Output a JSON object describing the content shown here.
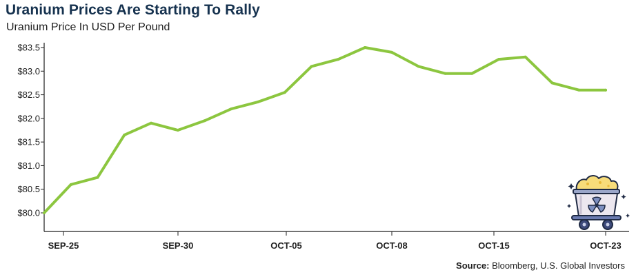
{
  "header": {
    "title": "Uranium Prices Are Starting To Rally",
    "subtitle": "Uranium Price In USD Per Pound"
  },
  "footer": {
    "source_label": "Source:",
    "source_text": "Bloomberg, U.S. Global Investors"
  },
  "colors": {
    "line": "#8cc63f",
    "axis": "#1f1f1f",
    "title": "#16324f"
  },
  "icon": "uranium-mine-cart-icon",
  "chart_data": {
    "type": "line",
    "title": "Uranium Prices Are Starting To Rally",
    "subtitle": "Uranium Price In USD Per Pound",
    "xlabel": "",
    "ylabel": "",
    "ylim": [
      80.0,
      83.5
    ],
    "yticks": [
      {
        "value": 80.0,
        "label": "$80.0"
      },
      {
        "value": 80.5,
        "label": "$80.5"
      },
      {
        "value": 81.0,
        "label": "$81.0"
      },
      {
        "value": 81.5,
        "label": "$81.5"
      },
      {
        "value": 82.0,
        "label": "$82.0"
      },
      {
        "value": 82.5,
        "label": "$82.5"
      },
      {
        "value": 83.0,
        "label": "$83.0"
      },
      {
        "value": 83.5,
        "label": "$83.5"
      }
    ],
    "xticks": [
      {
        "date": "2023-09-25",
        "label": "SEP-25"
      },
      {
        "date": "2023-09-30",
        "label": "SEP-30"
      },
      {
        "date": "2023-10-05",
        "label": "OCT-05"
      },
      {
        "date": "2023-10-08",
        "label": "OCT-08"
      },
      {
        "date": "2023-10-15",
        "label": "OCT-15"
      },
      {
        "date": "2023-10-23",
        "label": "OCT-23"
      }
    ],
    "grid": false,
    "series": [
      {
        "points": [
          {
            "x": "2023-09-24",
            "y": 80.0
          },
          {
            "x": "2023-09-25",
            "y": 80.6
          },
          {
            "x": "2023-09-26",
            "y": 80.75
          },
          {
            "x": "2023-09-27",
            "y": 81.65
          },
          {
            "x": "2023-09-28",
            "y": 81.9
          },
          {
            "x": "2023-09-29",
            "y": 81.75
          },
          {
            "x": "2023-10-02",
            "y": 81.95
          },
          {
            "x": "2023-10-03",
            "y": 82.2
          },
          {
            "x": "2023-10-04",
            "y": 82.35
          },
          {
            "x": "2023-10-05",
            "y": 82.55
          },
          {
            "x": "2023-10-06",
            "y": 83.1
          },
          {
            "x": "2023-10-07",
            "y": 83.25
          },
          {
            "x": "2023-10-08",
            "y": 83.5
          },
          {
            "x": "2023-10-09",
            "y": 83.4
          },
          {
            "x": "2023-10-10",
            "y": 83.1
          },
          {
            "x": "2023-10-11",
            "y": 82.95
          },
          {
            "x": "2023-10-12",
            "y": 82.95
          },
          {
            "x": "2023-10-13",
            "y": 83.25
          },
          {
            "x": "2023-10-16",
            "y": 83.3
          },
          {
            "x": "2023-10-17",
            "y": 82.75
          },
          {
            "x": "2023-10-18",
            "y": 82.6
          },
          {
            "x": "2023-10-19",
            "y": 82.6
          }
        ]
      }
    ]
  }
}
